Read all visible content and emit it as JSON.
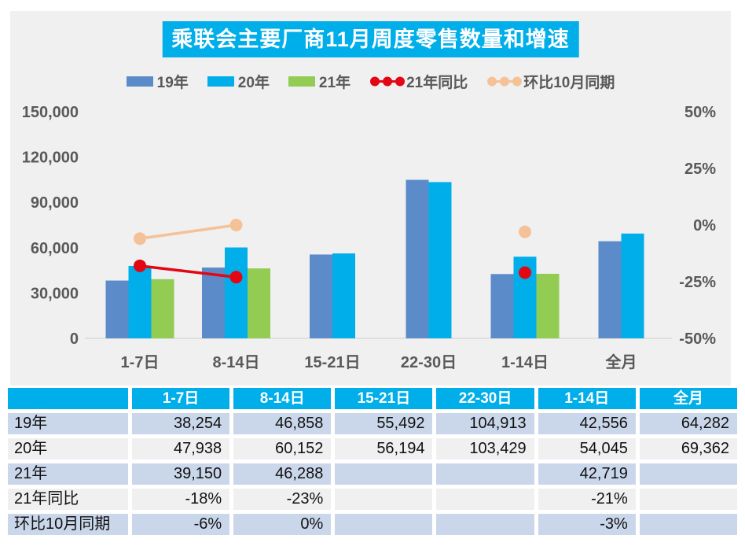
{
  "title": "乘联会主要厂商11月周度零售数量和增速",
  "colors": {
    "accent_cyan": "#00AEE9",
    "steel_blue": "#5C8BC9",
    "green": "#92CC52",
    "red": "#E30613",
    "peach": "#F5C197",
    "panel_bg": "#F0F0F1",
    "row_blue": "#CAD7EB",
    "row_gray": "#F0F0F0",
    "axis_text": "#595959",
    "baseline": "#D9D9D9"
  },
  "chart_data": {
    "type": "bar+line combo",
    "categories": [
      "1-7日",
      "8-14日",
      "15-21日",
      "22-30日",
      "1-14日",
      "全月"
    ],
    "series": [
      {
        "name": "19年",
        "type": "bar",
        "color_key": "steel_blue",
        "axis": "left",
        "values": [
          38254,
          46858,
          55492,
          104913,
          42556,
          64282
        ]
      },
      {
        "name": "20年",
        "type": "bar",
        "color_key": "accent_cyan",
        "axis": "left",
        "values": [
          47938,
          60152,
          56194,
          103429,
          54045,
          69362
        ]
      },
      {
        "name": "21年",
        "type": "bar",
        "color_key": "green",
        "axis": "left",
        "values": [
          39150,
          46288,
          null,
          null,
          42719,
          null
        ]
      },
      {
        "name": "21年同比",
        "type": "line",
        "color_key": "red",
        "axis": "right",
        "values": [
          -18,
          -23,
          null,
          null,
          -21,
          null
        ]
      },
      {
        "name": "环比10月同期",
        "type": "line",
        "color_key": "peach",
        "axis": "right",
        "values": [
          -6,
          0,
          null,
          null,
          -3,
          null
        ]
      }
    ],
    "left_axis": {
      "min": 0,
      "max": 150000,
      "ticks": [
        {
          "v": 150000,
          "label": "150,000"
        },
        {
          "v": 120000,
          "label": "120,000"
        },
        {
          "v": 90000,
          "label": "90,000"
        },
        {
          "v": 60000,
          "label": "60,000"
        },
        {
          "v": 30000,
          "label": "30,000"
        },
        {
          "v": 0,
          "label": "0"
        }
      ]
    },
    "right_axis": {
      "min": -50,
      "max": 50,
      "ticks": [
        {
          "v": 50,
          "label": "50%"
        },
        {
          "v": 25,
          "label": "25%"
        },
        {
          "v": 0,
          "label": "0%"
        },
        {
          "v": -25,
          "label": "-25%"
        },
        {
          "v": -50,
          "label": "-50%"
        }
      ]
    },
    "grid": false,
    "legend_position": "top"
  },
  "table": {
    "header": [
      "",
      "1-7日",
      "8-14日",
      "15-21日",
      "22-30日",
      "1-14日",
      "全月"
    ],
    "rows": [
      {
        "label": "19年",
        "bg": "row_blue",
        "values": [
          "38,254",
          "46,858",
          "55,492",
          "104,913",
          "42,556",
          "64,282"
        ]
      },
      {
        "label": "20年",
        "bg": "row_gray",
        "values": [
          "47,938",
          "60,152",
          "56,194",
          "103,429",
          "54,045",
          "69,362"
        ]
      },
      {
        "label": "21年",
        "bg": "row_blue",
        "values": [
          "39,150",
          "46,288",
          "",
          "",
          "42,719",
          ""
        ]
      },
      {
        "label": "21年同比",
        "bg": "row_gray",
        "values": [
          "-18%",
          "-23%",
          "",
          "",
          "-21%",
          ""
        ]
      },
      {
        "label": "环比10月同期",
        "bg": "row_blue",
        "values": [
          "-6%",
          "0%",
          "",
          "",
          "-3%",
          ""
        ]
      }
    ]
  }
}
